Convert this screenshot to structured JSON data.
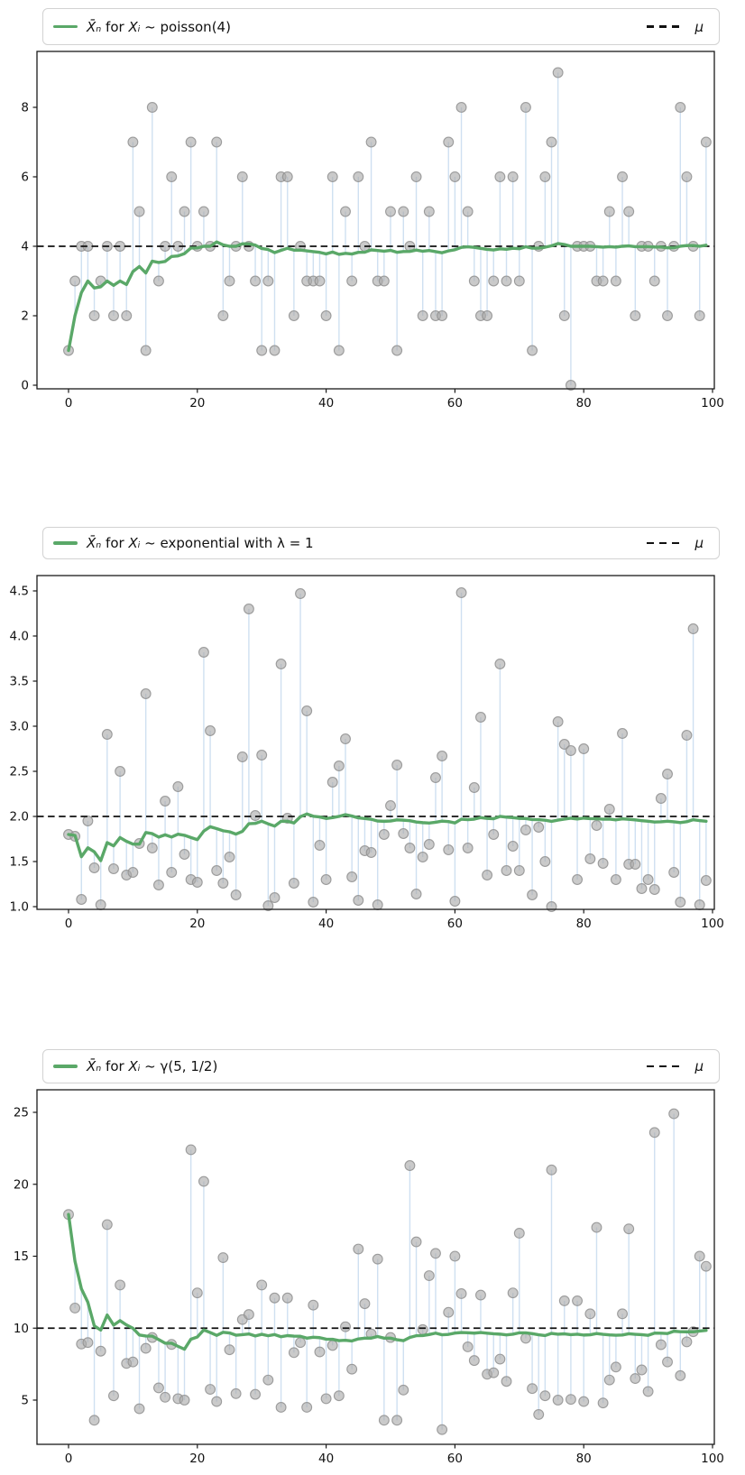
{
  "figure": {
    "background": "#ffffff"
  },
  "colors": {
    "mean_line": "#5aa868",
    "stem": "#cfe0f1",
    "dot_fill": "#a9a9a9",
    "dot_edge": "#8f8f8f",
    "mu_line": "#111111",
    "spine": "#1a1a1a",
    "tick_label": "#111111"
  },
  "chart_data": [
    {
      "type": "scatter",
      "title": "",
      "legend": {
        "xbar": "X̄ₙ",
        "for": " for ",
        "xi": "Xᵢ",
        "dist": " ~ poisson(4)",
        "mu": "μ"
      },
      "legend_position": "top",
      "mu": 4,
      "xlim": [
        -4.9,
        100.28
      ],
      "ylim": [
        -0.104,
        9.61
      ],
      "x_ticks": [
        0,
        20,
        40,
        60,
        80,
        100
      ],
      "x_tick_labels": [
        "0",
        "20",
        "40",
        "60",
        "80",
        "100"
      ],
      "y_ticks": [
        0,
        2,
        4,
        6,
        8
      ],
      "y_tick_labels": [
        "0",
        "2",
        "4",
        "6",
        "8"
      ],
      "series_note": "gray dots = samples Xi with stems to running mean; green = running mean X̄n; dashed = μ",
      "values": [
        1,
        3,
        4,
        4,
        2,
        3,
        4,
        2,
        4,
        2,
        7,
        5,
        1,
        8,
        3,
        4,
        6,
        4,
        5,
        7,
        4,
        5,
        4,
        7,
        2,
        3,
        4,
        6,
        4,
        3,
        1,
        3,
        1,
        6,
        6,
        2,
        4,
        3,
        3,
        3,
        2,
        6,
        1,
        5,
        3,
        6,
        4,
        7,
        3,
        3,
        5,
        1,
        5,
        4,
        6,
        2,
        5,
        2,
        2,
        7,
        6,
        8,
        5,
        3,
        2,
        2,
        3,
        6,
        3,
        6,
        3,
        8,
        1,
        4,
        6,
        7,
        9,
        2,
        0,
        4,
        4,
        4,
        3,
        3,
        5,
        3,
        6,
        5,
        2,
        4,
        4,
        3,
        4,
        2,
        4,
        8,
        6,
        4,
        2,
        7
      ]
    },
    {
      "type": "scatter",
      "title": "",
      "legend": {
        "xbar": "X̄ₙ",
        "for": " for ",
        "xi": "Xᵢ",
        "dist": " ~ exponential with λ = 1",
        "mu": "μ"
      },
      "legend_position": "top",
      "mu": 2,
      "xlim": [
        -4.9,
        100.28
      ],
      "ylim": [
        0.97,
        4.67
      ],
      "x_ticks": [
        0,
        20,
        40,
        60,
        80,
        100
      ],
      "x_tick_labels": [
        "0",
        "20",
        "40",
        "60",
        "80",
        "100"
      ],
      "y_ticks": [
        1.0,
        1.5,
        2.0,
        2.5,
        3.0,
        3.5,
        4.0,
        4.5
      ],
      "y_tick_labels": [
        "1.0",
        "1.5",
        "2.0",
        "2.5",
        "3.0",
        "3.5",
        "4.0",
        "4.5"
      ],
      "series_note": "gray dots = samples Xi with stems to running mean; green = running mean X̄n; dashed = μ",
      "values": [
        1.8,
        1.78,
        1.08,
        1.95,
        1.43,
        1.02,
        2.91,
        1.42,
        2.5,
        1.35,
        1.38,
        1.7,
        3.36,
        1.65,
        1.24,
        2.17,
        1.38,
        2.33,
        1.58,
        1.3,
        1.27,
        3.82,
        2.95,
        1.4,
        1.26,
        1.55,
        1.13,
        2.66,
        4.3,
        2.01,
        2.68,
        1.01,
        1.1,
        3.69,
        1.98,
        1.26,
        4.47,
        3.17,
        1.05,
        1.68,
        1.3,
        2.38,
        2.56,
        2.86,
        1.33,
        1.07,
        1.62,
        1.6,
        1.02,
        1.8,
        2.12,
        2.57,
        1.81,
        1.65,
        1.14,
        1.55,
        1.69,
        2.43,
        2.67,
        1.63,
        1.06,
        4.48,
        1.65,
        2.32,
        3.1,
        1.35,
        1.8,
        3.69,
        1.4,
        1.67,
        1.4,
        1.85,
        1.13,
        1.88,
        1.5,
        1.0,
        3.05,
        2.8,
        2.73,
        1.3,
        2.75,
        1.53,
        1.9,
        1.48,
        2.08,
        1.3,
        2.92,
        1.47,
        1.47,
        1.2,
        1.3,
        1.19,
        2.2,
        2.47,
        1.38,
        1.05,
        2.9,
        4.08,
        1.02,
        1.29
      ]
    },
    {
      "type": "scatter",
      "title": "",
      "legend": {
        "xbar": "X̄ₙ",
        "for": " for ",
        "xi": "Xᵢ",
        "dist": " ~ γ(5, 1/2)",
        "mu": "μ"
      },
      "legend_position": "top",
      "mu": 10,
      "xlim": [
        -4.9,
        100.28
      ],
      "ylim": [
        1.927,
        26.567
      ],
      "x_ticks": [
        0,
        20,
        40,
        60,
        80,
        100
      ],
      "x_tick_labels": [
        "0",
        "20",
        "40",
        "60",
        "80",
        "100"
      ],
      "y_ticks": [
        5,
        10,
        15,
        20,
        25
      ],
      "y_tick_labels": [
        "5",
        "10",
        "15",
        "20",
        "25"
      ],
      "series_note": "gray dots = samples Xi with stems to running mean; green = running mean X̄n; dashed = μ",
      "values": [
        17.9,
        11.4,
        8.9,
        9.0,
        3.6,
        8.4,
        17.2,
        5.3,
        13.0,
        7.55,
        7.65,
        4.4,
        8.6,
        9.35,
        5.85,
        5.2,
        8.87,
        5.1,
        5.0,
        22.4,
        12.45,
        20.2,
        5.75,
        4.9,
        14.9,
        8.5,
        5.45,
        10.6,
        10.95,
        5.4,
        13.0,
        6.4,
        12.1,
        4.5,
        12.1,
        8.3,
        9.0,
        4.5,
        11.6,
        8.35,
        5.1,
        8.8,
        5.3,
        10.1,
        7.15,
        15.5,
        11.7,
        9.6,
        14.8,
        3.6,
        9.35,
        3.6,
        5.7,
        21.3,
        16.0,
        9.9,
        13.65,
        15.2,
        2.95,
        11.1,
        15.0,
        12.4,
        8.7,
        7.75,
        12.3,
        6.8,
        6.9,
        7.85,
        6.3,
        12.45,
        16.6,
        9.3,
        5.8,
        4.0,
        5.3,
        21.0,
        5.0,
        11.9,
        5.05,
        11.9,
        4.9,
        11.0,
        17.0,
        4.8,
        6.4,
        7.3,
        11.0,
        16.9,
        6.5,
        7.1,
        5.6,
        23.6,
        8.85,
        7.65,
        24.9,
        6.7,
        9.05,
        9.75,
        15.0,
        14.3
      ]
    }
  ]
}
